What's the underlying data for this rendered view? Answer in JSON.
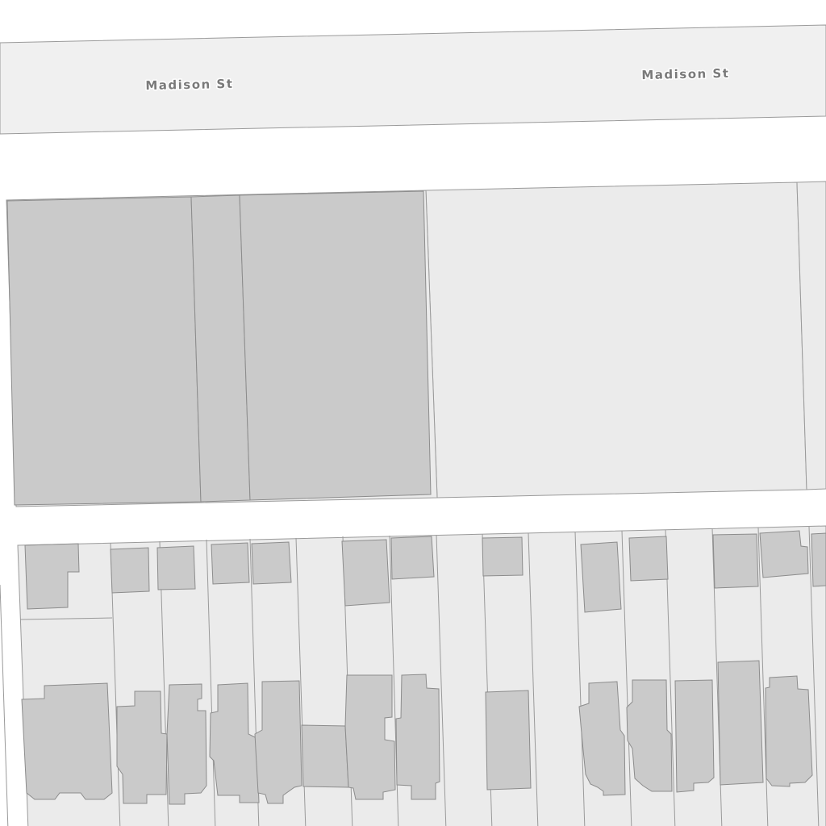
{
  "map": {
    "colors": {
      "background": "#ffffff",
      "street_fill": "#f0f0f0",
      "street_stroke": "#9a9a9a",
      "parcel_fill": "#ebebeb",
      "parcel_stroke": "#9a9a9a",
      "building_fill": "#cacaca",
      "building_stroke": "#8c8c8c",
      "label": "#7a7a7a"
    },
    "streets": [
      {
        "name": "Madison St",
        "labels": [
          "Madison St",
          "Madison St"
        ]
      }
    ]
  }
}
